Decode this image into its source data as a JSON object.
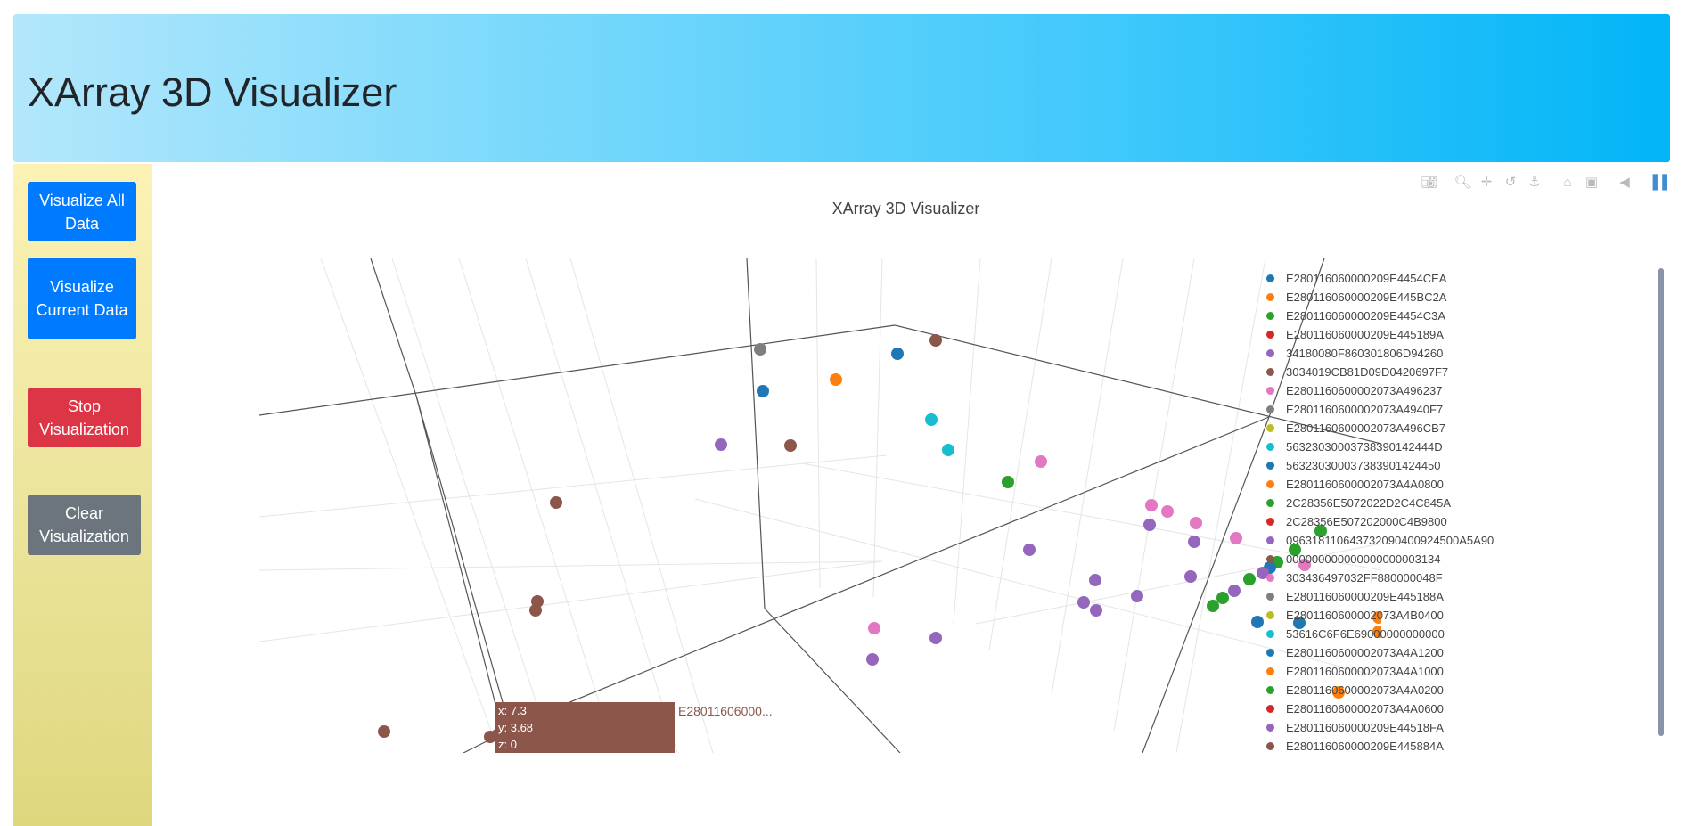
{
  "header": {
    "title": "XArray 3D Visualizer"
  },
  "sidebar": {
    "visualize_all_label": "Visualize All Data",
    "visualize_current_label": "Visualize Current Data",
    "stop_label": "Stop Visualization",
    "clear_label": "Clear Visualization",
    "colors": {
      "primary": "#007bff",
      "danger": "#dc3545",
      "secondary": "#6c757d"
    }
  },
  "modebar": {
    "icons": [
      "camera-icon",
      "zoom-icon",
      "pan-icon",
      "orbit-rotation-icon",
      "turntable-rotation-icon",
      "reset-camera-icon",
      "save-camera-icon",
      "hover-toggle-icon",
      "plotly-logo-icon"
    ]
  },
  "chart_data": {
    "type": "scatter3d",
    "title": "XArray 3D Visualizer",
    "legend_placement": "right",
    "series": [
      {
        "name": "E280116060000209E4454CEA",
        "color": "#1f77b4"
      },
      {
        "name": "E280116060000209E445BC2A",
        "color": "#ff7f0e"
      },
      {
        "name": "E280116060000209E4454C3A",
        "color": "#2ca02c"
      },
      {
        "name": "E280116060000209E445189A",
        "color": "#d62728"
      },
      {
        "name": "34180080F860301806D94260",
        "color": "#9467bd"
      },
      {
        "name": "3034019CB81D09D0420697F7",
        "color": "#8c564b"
      },
      {
        "name": "E2801160600002073A496237",
        "color": "#e377c2"
      },
      {
        "name": "E2801160600002073A4940F7",
        "color": "#7f7f7f"
      },
      {
        "name": "E2801160600002073A496CB7",
        "color": "#bcbd22"
      },
      {
        "name": "563230300037383901424 44D",
        "color": "#17becf"
      },
      {
        "name": "563230300037383901424450",
        "color": "#1f77b4"
      },
      {
        "name": "E2801160600002073A4A0800",
        "color": "#ff7f0e"
      },
      {
        "name": "2C28356E5072022D2C4C845A",
        "color": "#2ca02c"
      },
      {
        "name": "2C28356E507202000C4B9800",
        "color": "#d62728"
      },
      {
        "name": "0963181106437320904009245 00A5A90",
        "color": "#9467bd"
      },
      {
        "name": "000000000000000000003134",
        "color": "#8c564b"
      },
      {
        "name": "303436497032FF880000048F",
        "color": "#e377c2"
      },
      {
        "name": "E280116060000209E445188A",
        "color": "#7f7f7f"
      },
      {
        "name": "E2801160600002073A4B0400",
        "color": "#bcbd22"
      },
      {
        "name": "53616C6F6E69000000000000",
        "color": "#17becf"
      },
      {
        "name": "E2801160600002073A4A1200",
        "color": "#1f77b4"
      },
      {
        "name": "E2801160600002073A4A1000",
        "color": "#ff7f0e"
      },
      {
        "name": "E2801160600002073A4A0200",
        "color": "#2ca02c"
      },
      {
        "name": "E2801160600002073A4A0600",
        "color": "#d62728"
      },
      {
        "name": "E280116060000209E44518FA",
        "color": "#9467bd"
      },
      {
        "name": "E280116060000209E445884A",
        "color": "#8c564b"
      }
    ],
    "tooltip": {
      "x": "x: 7.3",
      "y": "y: 3.68",
      "z": "z: 0",
      "name": "E28011606000..."
    }
  }
}
